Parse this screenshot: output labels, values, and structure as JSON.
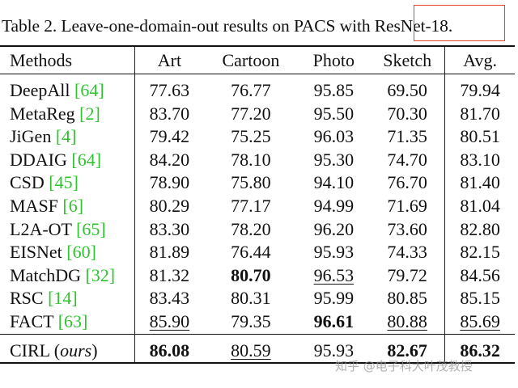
{
  "caption": {
    "prefix": "Table 2. Leave-one-domain-out results on PACS with ",
    "highlight": "ResNet-18",
    "suffix": "."
  },
  "table": {
    "columns": [
      "Methods",
      "Art",
      "Cartoon",
      "Photo",
      "Sketch",
      "Avg."
    ],
    "rows": [
      {
        "method": "DeepAll",
        "ref": "[64]",
        "values": [
          "77.63",
          "76.77",
          "95.85",
          "69.50",
          "79.94"
        ]
      },
      {
        "method": "MetaReg",
        "ref": "[2]",
        "values": [
          "83.70",
          "77.20",
          "95.50",
          "70.30",
          "81.70"
        ]
      },
      {
        "method": "JiGen",
        "ref": "[4]",
        "values": [
          "79.42",
          "75.25",
          "96.03",
          "71.35",
          "80.51"
        ]
      },
      {
        "method": "DDAIG",
        "ref": "[64]",
        "values": [
          "84.20",
          "78.10",
          "95.30",
          "74.70",
          "83.10"
        ]
      },
      {
        "method": "CSD",
        "ref": "[45]",
        "values": [
          "78.90",
          "75.80",
          "94.10",
          "76.70",
          "81.40"
        ]
      },
      {
        "method": "MASF",
        "ref": "[6]",
        "values": [
          "80.29",
          "77.17",
          "94.99",
          "71.69",
          "81.04"
        ]
      },
      {
        "method": "L2A-OT",
        "ref": "[65]",
        "values": [
          "83.30",
          "78.20",
          "96.20",
          "73.60",
          "82.80"
        ]
      },
      {
        "method": "EISNet",
        "ref": "[60]",
        "values": [
          "81.89",
          "76.44",
          "95.93",
          "74.33",
          "82.15"
        ]
      },
      {
        "method": "MatchDG",
        "ref": "[32]",
        "values": [
          "81.32",
          "80.70",
          "96.53",
          "79.72",
          "84.56"
        ]
      },
      {
        "method": "RSC",
        "ref": "[14]",
        "values": [
          "83.43",
          "80.31",
          "95.99",
          "80.85",
          "85.15"
        ]
      },
      {
        "method": "FACT",
        "ref": "[63]",
        "values": [
          "85.90",
          "79.35",
          "96.61",
          "80.88",
          "85.69"
        ]
      }
    ],
    "final_row": {
      "method": "CIRL",
      "note": "ours",
      "values": [
        "86.08",
        "80.59",
        "95.93",
        "82.67",
        "86.32"
      ]
    }
  },
  "watermark": "知乎 @电子科大叶茂教授",
  "colors": {
    "reference_link": "#2fc42f",
    "highlight_box": "#e2442c"
  }
}
